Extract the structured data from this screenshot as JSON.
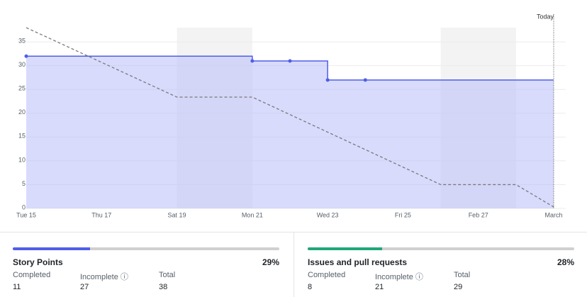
{
  "chart_data": {
    "type": "line",
    "xlim": [
      0,
      14
    ],
    "xticks": [
      {
        "value": 0,
        "label": "Tue 15"
      },
      {
        "value": 2,
        "label": "Thu 17"
      },
      {
        "value": 4,
        "label": "Sat 19"
      },
      {
        "value": 6,
        "label": "Mon 21"
      },
      {
        "value": 8,
        "label": "Wed 23"
      },
      {
        "value": 10,
        "label": "Fri 25"
      },
      {
        "value": 12,
        "label": "Feb 27"
      },
      {
        "value": 14,
        "label": "March"
      }
    ],
    "ylim": [
      0,
      38
    ],
    "yticks": [
      0,
      5,
      10,
      15,
      20,
      25,
      30,
      35
    ],
    "grid": true,
    "shaded_ranges": [
      [
        4,
        6
      ],
      [
        11,
        13
      ]
    ],
    "series": [
      {
        "color": "#4f5ee8",
        "area_color": "#b8befa",
        "x": [
          0,
          6,
          6,
          8,
          8,
          14
        ],
        "values": [
          32,
          32,
          31,
          31,
          27,
          27
        ],
        "markers": {
          "x": [
            0,
            6,
            7,
            8,
            9
          ],
          "values": [
            32,
            31,
            31,
            27,
            27
          ]
        }
      },
      {
        "color": "#7a7a7a",
        "dashed": true,
        "x": [
          0,
          4,
          6,
          11,
          13,
          14
        ],
        "values": [
          38,
          23.4,
          23.4,
          5,
          5,
          0.3
        ]
      }
    ],
    "today": {
      "x": 14,
      "label": "Today"
    }
  },
  "panels": [
    {
      "title": "Story Points",
      "percent": {
        "value": 29,
        "label": "29%"
      },
      "color": "#4f5ee8",
      "stats": [
        {
          "label": "Completed",
          "value": 11
        },
        {
          "label": "Incomplete ⓘ",
          "value": 27
        },
        {
          "label": "Total",
          "value": 38
        }
      ]
    },
    {
      "title": "Issues and pull requests",
      "percent": {
        "value": 28,
        "label": "28%"
      },
      "color": "#1fa67a",
      "stats": [
        {
          "label": "Completed",
          "value": 8
        },
        {
          "label": "Incomplete ⓘ",
          "value": 21
        },
        {
          "label": "Total",
          "value": 29
        }
      ]
    }
  ]
}
